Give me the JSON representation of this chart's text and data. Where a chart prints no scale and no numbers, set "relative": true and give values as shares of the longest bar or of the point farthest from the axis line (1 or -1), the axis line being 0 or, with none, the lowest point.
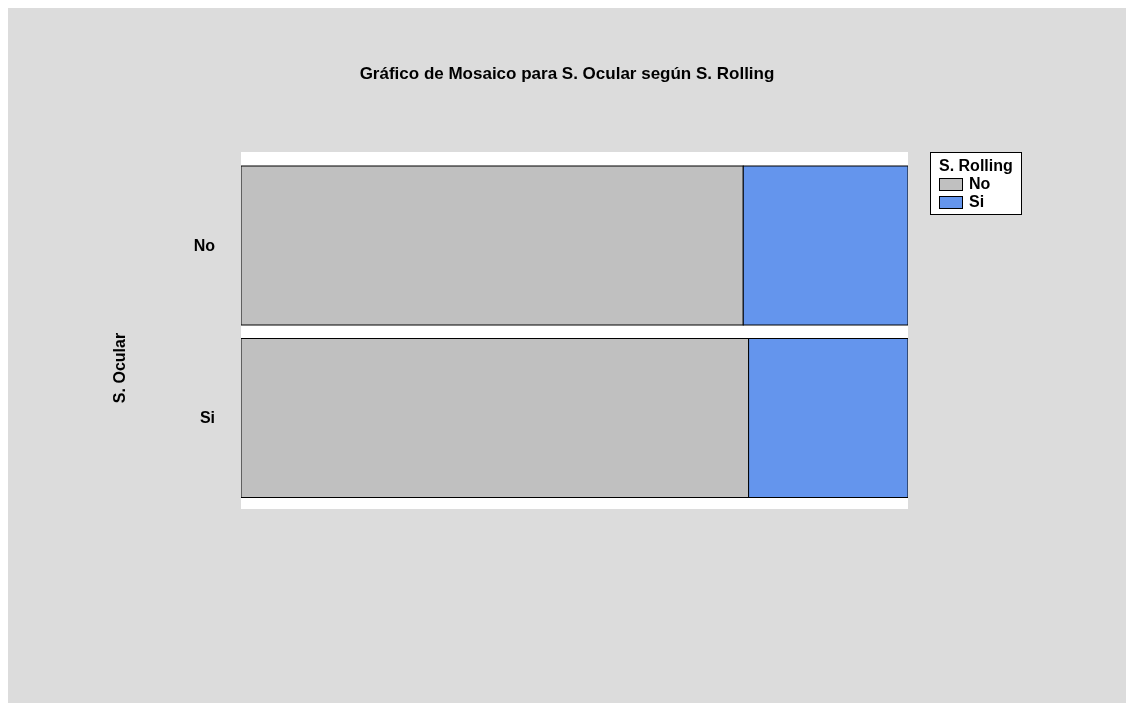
{
  "chart_data": {
    "type": "bar",
    "orientation": "horizontal",
    "stacked": true,
    "relative": true,
    "title": "Gráfico de Mosaico para S. Ocular según S. Rolling",
    "ylabel": "S. Ocular",
    "legend_title": "S. Rolling",
    "legend": "top right",
    "categories": [
      "No",
      "Si"
    ],
    "series": [
      {
        "name": "No",
        "color": "#c0c0c0",
        "values": [
          0.753,
          0.761
        ]
      },
      {
        "name": "Si",
        "color": "#6495ed",
        "values": [
          0.247,
          0.239
        ]
      }
    ]
  }
}
